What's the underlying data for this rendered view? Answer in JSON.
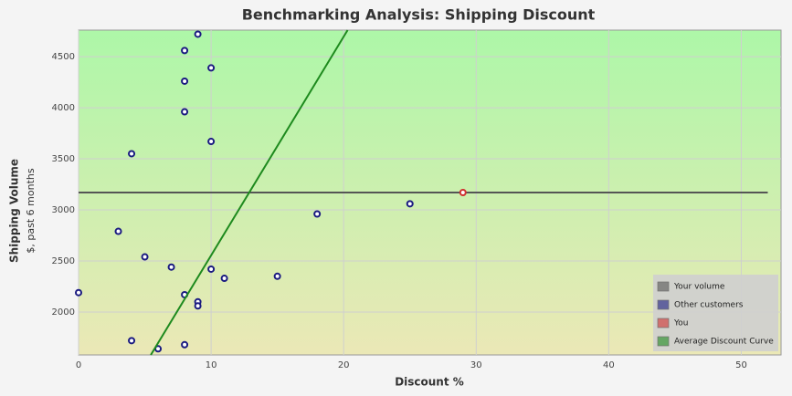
{
  "chart_data": {
    "type": "scatter",
    "title": "Benchmarking Analysis: Shipping Discount",
    "x_label": "Discount %",
    "y_label": "Shipping Volume",
    "y_sublabel": "$, past 6 months",
    "xlim": [
      0,
      53
    ],
    "ylim": [
      1580,
      4760
    ],
    "xticks": [
      0,
      10,
      20,
      30,
      40,
      50
    ],
    "yticks": [
      2000,
      2500,
      3000,
      3500,
      4000,
      4500
    ],
    "grid": true,
    "legend": "bottom-right",
    "series": [
      {
        "name": "Your volume",
        "color": "#555555",
        "mode": "line",
        "x": [
          0,
          52
        ],
        "values": [
          3170,
          3170
        ]
      },
      {
        "name": "Other customers",
        "color": "#1a1a80",
        "mode": "markers",
        "x": [
          9,
          8,
          10,
          8,
          8,
          10,
          4,
          25,
          18,
          3,
          5,
          7,
          10,
          11,
          15,
          0,
          8,
          9,
          9,
          4,
          8,
          6
        ],
        "values": [
          4720,
          4560,
          4390,
          4260,
          3960,
          3670,
          3550,
          3060,
          2960,
          2790,
          2540,
          2440,
          2420,
          2330,
          2350,
          2190,
          2170,
          2100,
          2060,
          1720,
          1680,
          1640
        ]
      },
      {
        "name": "You",
        "color": "#d03030",
        "mode": "markers",
        "x": [
          29
        ],
        "values": [
          3170
        ]
      },
      {
        "name": "Average Discount Curve",
        "color": "#1e8a1e",
        "mode": "line",
        "x": [
          5.45,
          20.3
        ],
        "values": [
          1580,
          4760
        ]
      }
    ]
  }
}
